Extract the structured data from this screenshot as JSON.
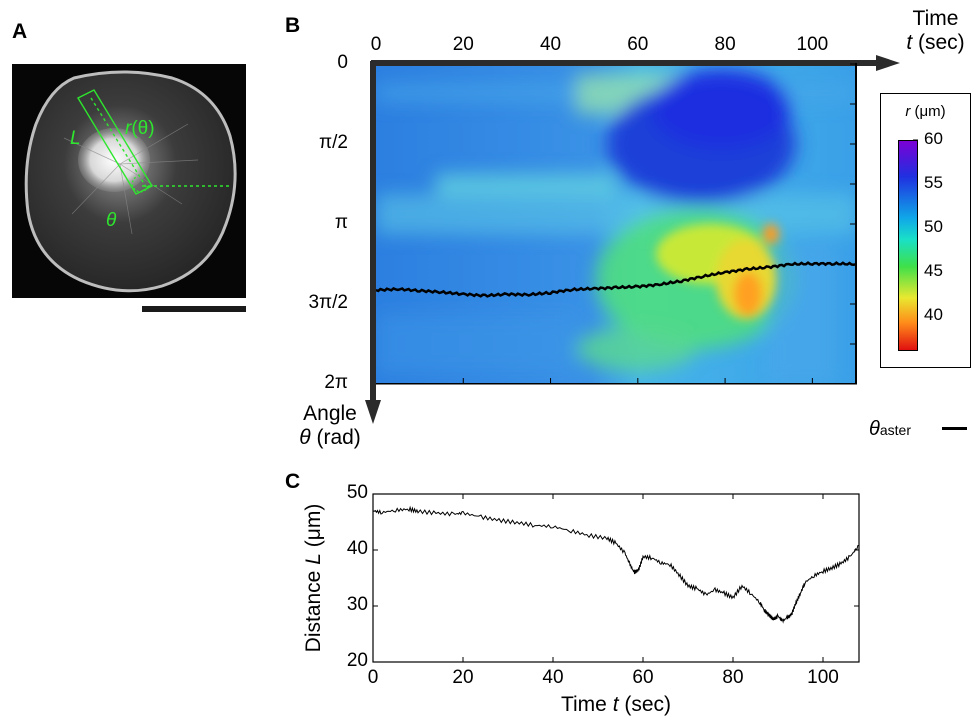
{
  "panels": {
    "a": "A",
    "b": "B",
    "c": "C"
  },
  "micrograph_labels": {
    "L": "L",
    "r": "r",
    "r_theta": "(θ)",
    "theta": "θ"
  },
  "chart_data": [
    {
      "type": "heatmap",
      "x_axis": {
        "label_line1": "Time",
        "label_var": "t",
        "label_unit": "(sec)",
        "ticks": [
          0,
          20,
          40,
          60,
          80,
          100
        ],
        "range": [
          0,
          110
        ]
      },
      "y_axis": {
        "label_line1": "Angle",
        "label_var": "θ",
        "label_unit": "(rad)",
        "ticks": [
          {
            "value": 0,
            "label": "0"
          },
          {
            "value": 1.5708,
            "label": "π/2"
          },
          {
            "value": 3.1416,
            "label": "π"
          },
          {
            "value": 4.7124,
            "label": "3π/2"
          },
          {
            "value": 6.2832,
            "label": "2π"
          }
        ],
        "range": [
          0,
          6.2832
        ]
      },
      "colorbar": {
        "title_var": "r",
        "title_unit": "(μm)",
        "ticks": [
          60,
          55,
          50,
          45,
          40
        ],
        "range": [
          36,
          60
        ]
      },
      "legend": {
        "symbol": "θ",
        "subscript": "aster"
      },
      "series": [
        {
          "x": [
            0,
            5,
            10,
            15,
            20,
            25,
            30,
            35,
            40,
            45,
            50,
            55,
            60,
            65,
            70,
            75,
            80,
            85,
            90,
            95,
            100,
            105,
            110
          ],
          "y": [
            4.44,
            4.42,
            4.45,
            4.48,
            4.52,
            4.55,
            4.52,
            4.53,
            4.49,
            4.43,
            4.41,
            4.39,
            4.37,
            4.33,
            4.26,
            4.17,
            4.09,
            4.03,
            3.99,
            3.93,
            3.92,
            3.92,
            3.93
          ]
        }
      ]
    },
    {
      "type": "line",
      "xlabel_text": "Time",
      "xlabel_var": "t",
      "xlabel_unit": "(sec)",
      "ylabel_text": "Distance",
      "ylabel_var": "L",
      "ylabel_unit": "(μm)",
      "xticks": [
        0,
        20,
        40,
        60,
        80,
        100
      ],
      "yticks": [
        20,
        30,
        40,
        50
      ],
      "xlim": [
        0,
        108
      ],
      "ylim": [
        20,
        50
      ],
      "series": [
        {
          "x": [
            0,
            2,
            5,
            8,
            10,
            14,
            18,
            20,
            24,
            28,
            32,
            36,
            40,
            44,
            48,
            52,
            54,
            56,
            57,
            58,
            59,
            60,
            62,
            64,
            66,
            68,
            70,
            72,
            74,
            76,
            78,
            80,
            82,
            84,
            86,
            87,
            88,
            89,
            90,
            91,
            92,
            93,
            94,
            95,
            96,
            98,
            100,
            102,
            104,
            106,
            108
          ],
          "y": [
            47.0,
            46.7,
            47.1,
            47.3,
            46.9,
            46.6,
            46.4,
            46.6,
            45.9,
            45.3,
            44.9,
            44.4,
            44.2,
            43.4,
            42.6,
            42.1,
            41.2,
            39.4,
            37.6,
            36.0,
            36.4,
            38.8,
            38.6,
            37.7,
            37.4,
            35.6,
            33.6,
            33.1,
            32.0,
            32.9,
            32.3,
            31.5,
            33.6,
            32.2,
            30.6,
            29.2,
            28.4,
            27.6,
            28.2,
            27.3,
            27.9,
            28.5,
            30.6,
            32.3,
            34.2,
            35.4,
            36.2,
            36.8,
            37.6,
            38.8,
            40.8
          ]
        }
      ]
    }
  ]
}
